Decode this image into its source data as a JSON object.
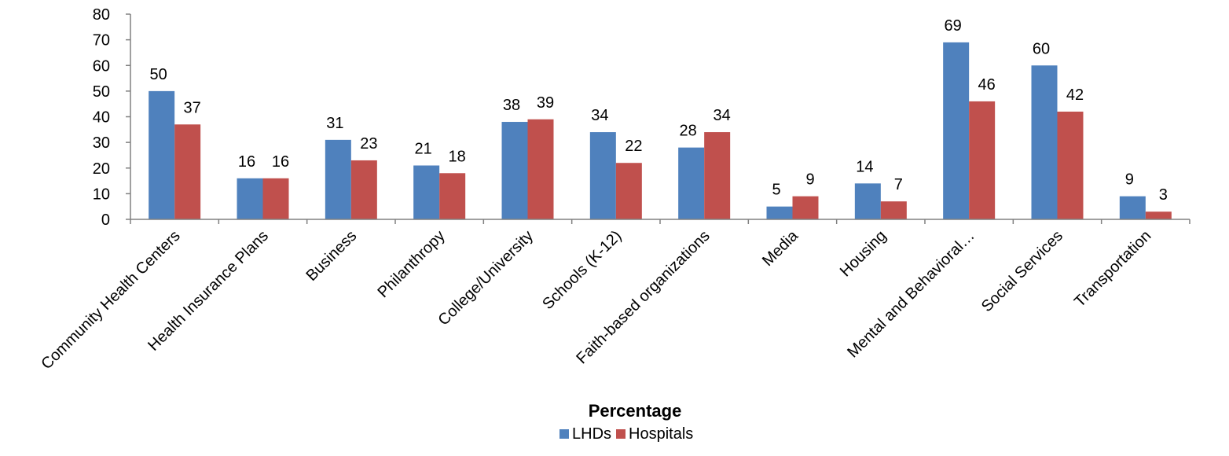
{
  "chart_data": {
    "type": "bar",
    "categories": [
      "Community Health Centers",
      "Health Insurance Plans",
      "Business",
      "Philanthropy",
      "College/University",
      "Schools (K-12)",
      "Faith-based organizations",
      "Media",
      "Housing",
      "Mental and Behavioral…",
      "Social Services",
      "Transportation"
    ],
    "series": [
      {
        "name": "LHDs",
        "color": "#4f81bd",
        "values": [
          50,
          16,
          31,
          21,
          38,
          34,
          28,
          5,
          14,
          69,
          60,
          9
        ]
      },
      {
        "name": "Hospitals",
        "color": "#c0504d",
        "values": [
          37,
          16,
          23,
          18,
          39,
          22,
          34,
          9,
          7,
          46,
          42,
          3
        ]
      }
    ],
    "data_labels": {
      "LHDs": [
        "50",
        "16",
        "31",
        "21",
        "38",
        "34",
        "28",
        "5",
        "14",
        "69",
        "60",
        "9"
      ],
      "Hospitals": [
        "37",
        "16",
        "23",
        "18",
        "39",
        "22",
        "34",
        "9",
        "7",
        "46",
        "42",
        "3"
      ]
    },
    "title": "",
    "xlabel": "Percentage",
    "ylabel": "",
    "ylim": [
      0,
      80
    ],
    "yticks": [
      "0",
      "10",
      "20",
      "30",
      "40",
      "50",
      "60",
      "70",
      "80"
    ],
    "grid": false,
    "legend": "bottom-center"
  }
}
